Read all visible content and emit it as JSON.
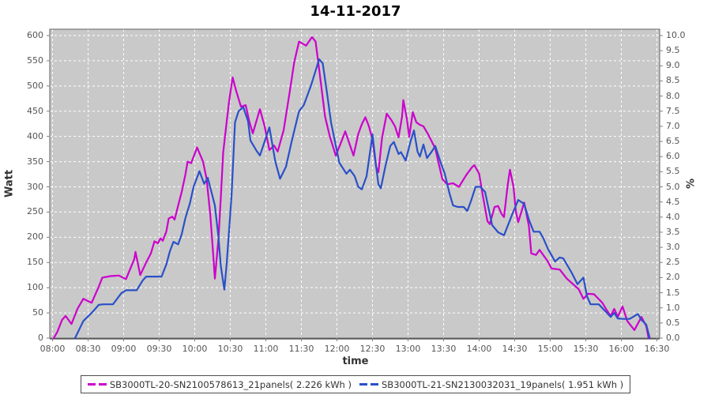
{
  "title": "14-11-2017",
  "colors": {
    "series1": "#cc00cc",
    "series2": "#2a50c8",
    "plot_bg": "#c9c9c9",
    "grid": "#ffffff",
    "border": "#777777",
    "axis_line": "#555555",
    "tick": "#808080"
  },
  "chart_data": {
    "type": "line",
    "title": "14-11-2017",
    "xlabel": "time",
    "ylabel_left": "Watt",
    "ylabel_right": "%",
    "x_unit": "minutes since midnight",
    "x_tick_minutes": [
      480,
      510,
      540,
      570,
      600,
      630,
      660,
      690,
      720,
      750,
      780,
      810,
      840,
      870,
      900,
      930,
      960,
      990
    ],
    "x_tick_labels": [
      "08:00",
      "08:30",
      "09:00",
      "09:30",
      "10:00",
      "10:30",
      "11:00",
      "11:30",
      "12:00",
      "12:30",
      "13:00",
      "13:30",
      "14:00",
      "14:30",
      "15:00",
      "15:30",
      "16:00",
      "16:30"
    ],
    "ylim_left": [
      0,
      600
    ],
    "ytick_step_left": 50,
    "ylim_right": [
      0,
      10
    ],
    "ytick_step_right": 0.5,
    "grid": true,
    "legend_position": "bottom",
    "series": [
      {
        "name": "SB3000TL-20-SN2100578613_21panels( 2.226 kWh )",
        "color": "#cc00cc",
        "points": [
          [
            481,
            0
          ],
          [
            484,
            12
          ],
          [
            488,
            36
          ],
          [
            491,
            44
          ],
          [
            496,
            28
          ],
          [
            501,
            58
          ],
          [
            506,
            78
          ],
          [
            513,
            70
          ],
          [
            519,
            102
          ],
          [
            522,
            120
          ],
          [
            529,
            123
          ],
          [
            536,
            124
          ],
          [
            542,
            117
          ],
          [
            549,
            157
          ],
          [
            550,
            171
          ],
          [
            554,
            125
          ],
          [
            559,
            150
          ],
          [
            563,
            168
          ],
          [
            566,
            192
          ],
          [
            569,
            188
          ],
          [
            571,
            198
          ],
          [
            573,
            193
          ],
          [
            576,
            211
          ],
          [
            578,
            237
          ],
          [
            581,
            241
          ],
          [
            583,
            235
          ],
          [
            586,
            263
          ],
          [
            589,
            290
          ],
          [
            592,
            323
          ],
          [
            594,
            350
          ],
          [
            597,
            347
          ],
          [
            602,
            378
          ],
          [
            607,
            350
          ],
          [
            610,
            316
          ],
          [
            613,
            248
          ],
          [
            615,
            185
          ],
          [
            617,
            118
          ],
          [
            620,
            196
          ],
          [
            622,
            279
          ],
          [
            624,
            368
          ],
          [
            627,
            430
          ],
          [
            629,
            470
          ],
          [
            632,
            517
          ],
          [
            635,
            490
          ],
          [
            639,
            459
          ],
          [
            643,
            462
          ],
          [
            646,
            430
          ],
          [
            649,
            406
          ],
          [
            652,
            430
          ],
          [
            655,
            454
          ],
          [
            659,
            420
          ],
          [
            663,
            373
          ],
          [
            667,
            382
          ],
          [
            670,
            370
          ],
          [
            675,
            412
          ],
          [
            680,
            486
          ],
          [
            684,
            548
          ],
          [
            688,
            588
          ],
          [
            694,
            580
          ],
          [
            699,
            597
          ],
          [
            702,
            588
          ],
          [
            705,
            533
          ],
          [
            710,
            439
          ],
          [
            714,
            400
          ],
          [
            719,
            362
          ],
          [
            723,
            385
          ],
          [
            727,
            410
          ],
          [
            734,
            362
          ],
          [
            738,
            405
          ],
          [
            741,
            424
          ],
          [
            744,
            438
          ],
          [
            747,
            420
          ],
          [
            750,
            394
          ],
          [
            753,
            340
          ],
          [
            755,
            329
          ],
          [
            758,
            396
          ],
          [
            762,
            445
          ],
          [
            766,
            432
          ],
          [
            769,
            420
          ],
          [
            772,
            398
          ],
          [
            775,
            440
          ],
          [
            776,
            472
          ],
          [
            779,
            435
          ],
          [
            781,
            399
          ],
          [
            784,
            448
          ],
          [
            787,
            428
          ],
          [
            790,
            423
          ],
          [
            793,
            420
          ],
          [
            797,
            404
          ],
          [
            800,
            390
          ],
          [
            803,
            376
          ],
          [
            806,
            345
          ],
          [
            809,
            315
          ],
          [
            813,
            305
          ],
          [
            818,
            307
          ],
          [
            823,
            300
          ],
          [
            829,
            323
          ],
          [
            834,
            339
          ],
          [
            836,
            343
          ],
          [
            840,
            326
          ],
          [
            843,
            284
          ],
          [
            847,
            232
          ],
          [
            849,
            226
          ],
          [
            853,
            260
          ],
          [
            856,
            262
          ],
          [
            859,
            246
          ],
          [
            861,
            240
          ],
          [
            864,
            302
          ],
          [
            866,
            334
          ],
          [
            869,
            300
          ],
          [
            871,
            251
          ],
          [
            873,
            230
          ],
          [
            878,
            269
          ],
          [
            882,
            222
          ],
          [
            884,
            168
          ],
          [
            888,
            165
          ],
          [
            891,
            175
          ],
          [
            898,
            152
          ],
          [
            901,
            138
          ],
          [
            908,
            136
          ],
          [
            914,
            118
          ],
          [
            924,
            97
          ],
          [
            928,
            78
          ],
          [
            932,
            88
          ],
          [
            937,
            87
          ],
          [
            944,
            70
          ],
          [
            947,
            58
          ],
          [
            951,
            44
          ],
          [
            954,
            58
          ],
          [
            957,
            42
          ],
          [
            961,
            63
          ],
          [
            965,
            34
          ],
          [
            971,
            16
          ],
          [
            977,
            42
          ],
          [
            981,
            24
          ],
          [
            983,
            0
          ]
        ]
      },
      {
        "name": "SB3000TL-21-SN2130032031_19panels( 1.951 kWh )",
        "color": "#2a50c8",
        "points": [
          [
            499,
            0
          ],
          [
            506,
            34
          ],
          [
            513,
            50
          ],
          [
            519,
            66
          ],
          [
            523,
            67
          ],
          [
            531,
            67
          ],
          [
            538,
            89
          ],
          [
            542,
            95
          ],
          [
            551,
            95
          ],
          [
            556,
            114
          ],
          [
            559,
            122
          ],
          [
            572,
            122
          ],
          [
            576,
            146
          ],
          [
            579,
            172
          ],
          [
            582,
            191
          ],
          [
            586,
            186
          ],
          [
            589,
            206
          ],
          [
            592,
            237
          ],
          [
            596,
            268
          ],
          [
            599,
            300
          ],
          [
            604,
            331
          ],
          [
            608,
            306
          ],
          [
            611,
            318
          ],
          [
            617,
            263
          ],
          [
            620,
            201
          ],
          [
            622,
            143
          ],
          [
            625,
            96
          ],
          [
            627,
            149
          ],
          [
            631,
            280
          ],
          [
            634,
            428
          ],
          [
            637,
            450
          ],
          [
            641,
            458
          ],
          [
            645,
            430
          ],
          [
            647,
            392
          ],
          [
            652,
            372
          ],
          [
            655,
            362
          ],
          [
            663,
            418
          ],
          [
            668,
            350
          ],
          [
            672,
            316
          ],
          [
            677,
            340
          ],
          [
            682,
            392
          ],
          [
            688,
            450
          ],
          [
            692,
            462
          ],
          [
            698,
            500
          ],
          [
            705,
            553
          ],
          [
            708,
            545
          ],
          [
            712,
            480
          ],
          [
            715,
            428
          ],
          [
            722,
            348
          ],
          [
            728,
            326
          ],
          [
            731,
            334
          ],
          [
            735,
            321
          ],
          [
            738,
            300
          ],
          [
            741,
            295
          ],
          [
            745,
            321
          ],
          [
            748,
            370
          ],
          [
            750,
            404
          ],
          [
            753,
            342
          ],
          [
            755,
            305
          ],
          [
            757,
            297
          ],
          [
            761,
            342
          ],
          [
            765,
            381
          ],
          [
            768,
            389
          ],
          [
            772,
            365
          ],
          [
            774,
            369
          ],
          [
            778,
            352
          ],
          [
            782,
            389
          ],
          [
            785,
            412
          ],
          [
            788,
            370
          ],
          [
            790,
            360
          ],
          [
            793,
            384
          ],
          [
            796,
            357
          ],
          [
            800,
            370
          ],
          [
            803,
            381
          ],
          [
            808,
            345
          ],
          [
            811,
            326
          ],
          [
            815,
            287
          ],
          [
            818,
            263
          ],
          [
            822,
            260
          ],
          [
            827,
            260
          ],
          [
            830,
            252
          ],
          [
            833,
            271
          ],
          [
            837,
            300
          ],
          [
            841,
            300
          ],
          [
            845,
            290
          ],
          [
            851,
            224
          ],
          [
            856,
            210
          ],
          [
            861,
            204
          ],
          [
            868,
            246
          ],
          [
            873,
            274
          ],
          [
            878,
            266
          ],
          [
            882,
            235
          ],
          [
            886,
            211
          ],
          [
            891,
            211
          ],
          [
            894,
            199
          ],
          [
            898,
            177
          ],
          [
            901,
            165
          ],
          [
            904,
            152
          ],
          [
            908,
            160
          ],
          [
            911,
            158
          ],
          [
            918,
            130
          ],
          [
            923,
            107
          ],
          [
            928,
            120
          ],
          [
            931,
            83
          ],
          [
            934,
            67
          ],
          [
            941,
            67
          ],
          [
            947,
            52
          ],
          [
            951,
            42
          ],
          [
            954,
            50
          ],
          [
            957,
            39
          ],
          [
            961,
            38
          ],
          [
            967,
            38
          ],
          [
            974,
            48
          ],
          [
            977,
            36
          ],
          [
            981,
            27
          ],
          [
            984,
            0
          ]
        ]
      }
    ]
  }
}
